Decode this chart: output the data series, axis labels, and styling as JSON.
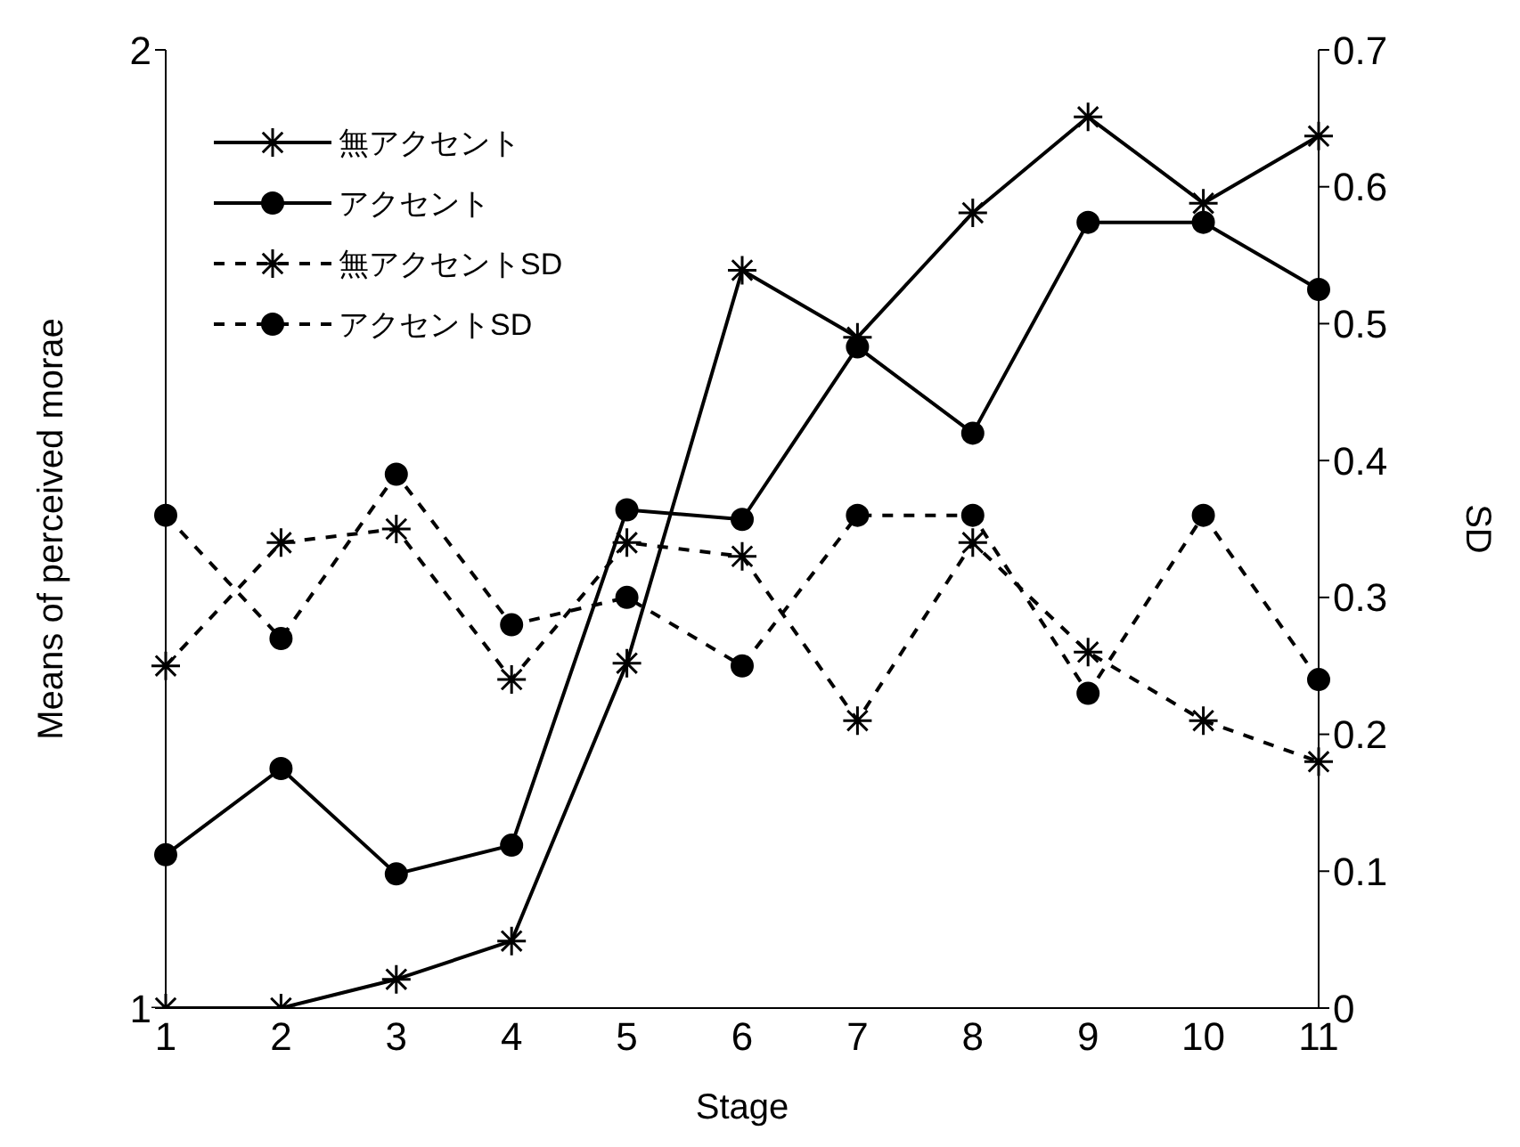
{
  "chart_data": {
    "type": "line",
    "xlabel": "Stage",
    "ylabel": "Means of perceived morae",
    "y2label": "SD",
    "categories": [
      "1",
      "2",
      "3",
      "4",
      "5",
      "6",
      "7",
      "8",
      "9",
      "10",
      "11"
    ],
    "ylim": [
      1,
      2
    ],
    "yticks": [
      1,
      2
    ],
    "y2lim": [
      0,
      0.7
    ],
    "y2ticks": [
      0,
      0.1,
      0.2,
      0.3,
      0.4,
      0.5,
      0.6,
      0.7
    ],
    "legend": "top left",
    "series": [
      {
        "name": "無アクセント",
        "color": "#000000",
        "marker": "cross",
        "line_style": "solid",
        "values": [
          1,
          1,
          1.03,
          1.07,
          1.36,
          1.77,
          1.7,
          1.83,
          1.93,
          1.84,
          1.91
        ]
      },
      {
        "name": "アクセント",
        "color": "#000000",
        "marker": "circle",
        "line_style": "solid",
        "values": [
          1.16,
          1.25,
          1.14,
          1.17,
          1.52,
          1.51,
          1.69,
          1.6,
          1.82,
          1.82,
          1.75
        ]
      },
      {
        "name": "無アクセントSD",
        "color": "#000000",
        "marker": "cross",
        "line_style": "dashed",
        "axis": "y2",
        "values": [
          0.25,
          0.34,
          0.35,
          0.24,
          0.34,
          0.33,
          0.21,
          0.34,
          0.26,
          0.21,
          0.18
        ]
      },
      {
        "name": "アクセントSD",
        "color": "#000000",
        "marker": "circle",
        "line_style": "dashed",
        "axis": "y2",
        "values": [
          0.36,
          0.27,
          0.39,
          0.28,
          0.3,
          0.25,
          0.36,
          0.36,
          0.23,
          0.36,
          0.24
        ]
      }
    ]
  }
}
